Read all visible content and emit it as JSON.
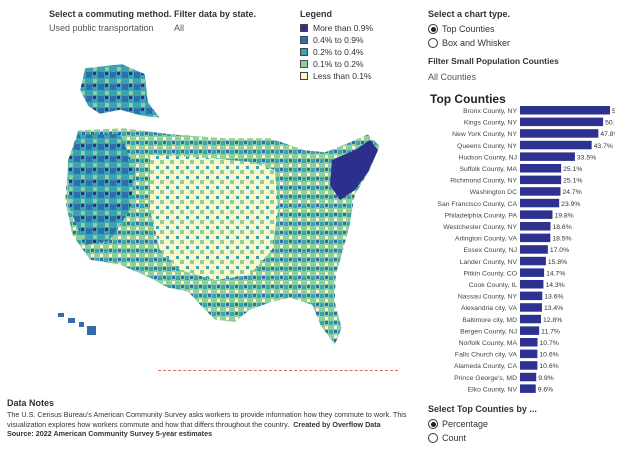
{
  "filters": {
    "commute_label": "Select a commuting method.",
    "commute_value": "Used public transportation",
    "state_label": "Filter data by state.",
    "state_value": "All"
  },
  "legend": {
    "title": "Legend",
    "items": [
      {
        "label": "More than 0.9%",
        "color": "#2c2f8c"
      },
      {
        "label": "0.4% to 0.9%",
        "color": "#2f6eaa"
      },
      {
        "label": "0.2% to 0.4%",
        "color": "#39a3b3"
      },
      {
        "label": "0.1% to 0.2%",
        "color": "#8fcf9f"
      },
      {
        "label": "Less than 0.1%",
        "color": "#fbf7c9"
      }
    ]
  },
  "chart_type": {
    "title": "Select a chart type.",
    "options": [
      {
        "label": "Top Counties",
        "checked": true
      },
      {
        "label": "Box and Whisker",
        "checked": false
      }
    ]
  },
  "small_pop": {
    "title": "Filter Small Population Counties",
    "value": "All Counties"
  },
  "top_counties_title": "Top Counties",
  "chart_data": {
    "type": "bar",
    "orientation": "horizontal",
    "title": "Top Counties",
    "categories": [
      "Bronx County, NY",
      "Kings County, NY",
      "New York County, NY",
      "Queens County, NY",
      "Hudson County, NJ",
      "Suffolk County, MA",
      "Richmond County, NY",
      "Washington DC",
      "San Francisco County, CA",
      "Philadelphia County, PA",
      "Westchester County, NY",
      "Arlington County, VA",
      "Essex County, NJ",
      "Lander County, NV",
      "Pitkin County, CO",
      "Cook County, IL",
      "Nassau County, NY",
      "Alexandria city, VA",
      "Baltimore city, MD",
      "Bergen County, NJ",
      "Norfolk County, MA",
      "Falls Church city, VA",
      "Alameda County, CA",
      "Prince George's, MD",
      "Elko County, NV"
    ],
    "values": [
      54.9,
      50.7,
      47.8,
      43.7,
      33.5,
      25.1,
      25.1,
      24.7,
      23.9,
      19.8,
      18.6,
      18.5,
      17.0,
      15.8,
      14.7,
      14.3,
      13.6,
      13.4,
      12.8,
      11.7,
      10.7,
      10.6,
      10.6,
      9.9,
      9.6
    ],
    "labels": [
      "54.9%",
      "50.7%",
      "47.8%",
      "43.7%",
      "33.5%",
      "25.1%",
      "25.1%",
      "24.7%",
      "23.9%",
      "19.8%",
      "18.6%",
      "18.5%",
      "17.0%",
      "15.8%",
      "14.7%",
      "14.3%",
      "13.6%",
      "13.4%",
      "12.8%",
      "11.7%",
      "10.7%",
      "10.6%",
      "10.6%",
      "9.9%",
      "9.6%"
    ],
    "xlim": [
      0,
      60
    ],
    "bar_color": "#2d3190"
  },
  "notes": {
    "heading": "Data Notes",
    "line1": "The U.S. Census Bureau's American Community Survey asks workers to provide information how they commute to work. This",
    "line2": "visualization explores how workers commute and how that differs throughout the country.",
    "credit": "Created by Overflow Data",
    "source": "Source: 2022 American Community Survey 5-year estimates"
  },
  "top_by": {
    "title": "Select Top Counties by ...",
    "options": [
      {
        "label": "Percentage",
        "checked": true
      },
      {
        "label": "Count",
        "checked": false
      }
    ]
  }
}
